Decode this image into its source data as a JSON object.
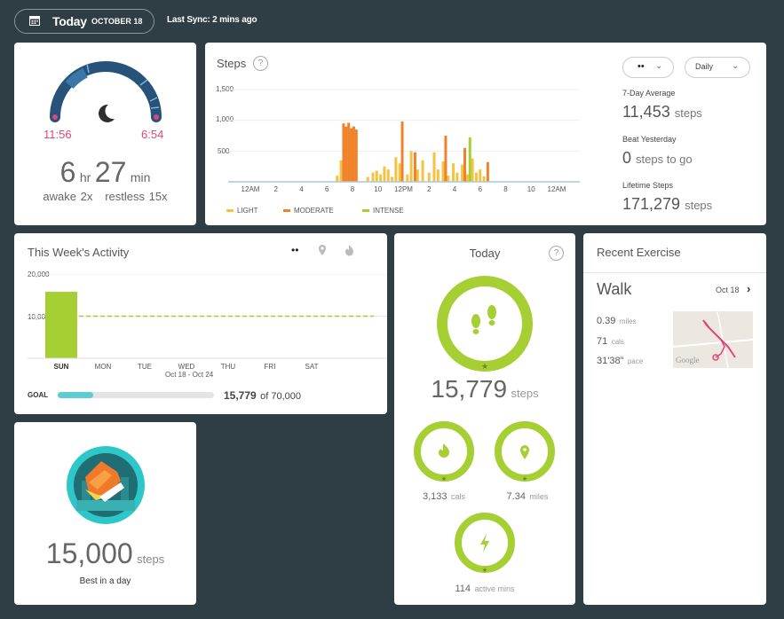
{
  "header": {
    "today_label": "Today",
    "date": "OCTOBER 18",
    "sync": "Last Sync: 2 mins ago"
  },
  "sleep": {
    "start": "11:56",
    "end": "6:54",
    "hours": "6",
    "hours_unit": "hr",
    "minutes": "27",
    "minutes_unit": "min",
    "awake": "awake 2x",
    "restless": "restless 15x"
  },
  "steps_card": {
    "title": "Steps",
    "help": "?",
    "view": "Daily",
    "seven_day_label": "7-Day Average",
    "seven_day_value": "11,453",
    "seven_day_unit": "steps",
    "beat_label": "Beat Yesterday",
    "beat_value": "0",
    "beat_unit": "steps to go",
    "lifetime_label": "Lifetime Steps",
    "lifetime_value": "171,279",
    "lifetime_unit": "steps",
    "legend": [
      "LIGHT",
      "MODERATE",
      "INTENSE"
    ],
    "colors": {
      "light": "#f5c242",
      "moderate": "#f0832a",
      "intense": "#a5cf33"
    }
  },
  "chart_data": [
    {
      "type": "bar",
      "title": "Steps",
      "y_ticks": [
        "1,500",
        "1,000",
        "500"
      ],
      "ylim": [
        0,
        1500
      ],
      "x_ticks": [
        "12AM",
        "2",
        "4",
        "6",
        "8",
        "10",
        "12PM",
        "2",
        "4",
        "6",
        "8",
        "10",
        "12AM"
      ],
      "x_range_hours": [
        0,
        24
      ],
      "series": [
        {
          "name": "LIGHT",
          "x": [
            6.8,
            7.1,
            9.2,
            9.6,
            9.9,
            10.2,
            10.5,
            10.8,
            11.1,
            11.4,
            11.7,
            12.3,
            12.6,
            13.1,
            13.5,
            14.0,
            14.4,
            14.7,
            15.1,
            15.5,
            15.9,
            16.2,
            16.6,
            17.0,
            17.4,
            17.7,
            18.0,
            18.3
          ],
          "values": [
            100,
            350,
            80,
            150,
            180,
            120,
            250,
            200,
            80,
            400,
            300,
            120,
            500,
            200,
            350,
            150,
            480,
            200,
            330,
            100,
            300,
            150,
            280,
            120,
            380,
            150,
            200,
            90
          ]
        },
        {
          "name": "MODERATE",
          "x": [
            7.3,
            7.5,
            7.7,
            7.9,
            8.1,
            8.3,
            11.9,
            12.9,
            15.3,
            16.8,
            18.6
          ],
          "values": [
            950,
            900,
            960,
            870,
            900,
            850,
            980,
            480,
            750,
            550,
            320
          ]
        },
        {
          "name": "INTENSE",
          "x": [
            17.2
          ],
          "values": [
            720
          ]
        }
      ]
    },
    {
      "type": "bar",
      "title": "This Week's Activity",
      "y_ticks": [
        "20,000",
        "10,000"
      ],
      "ylim": [
        0,
        20000
      ],
      "categories": [
        "SUN",
        "MON",
        "TUE",
        "WED",
        "THU",
        "FRI",
        "SAT"
      ],
      "values": [
        15779,
        0,
        0,
        0,
        0,
        0,
        0
      ],
      "goal_line": 10000
    }
  ],
  "week": {
    "title": "This Week's Activity",
    "range": "Oct 18 - Oct 24",
    "goal_label": "GOAL",
    "goal_progress": 0.225,
    "total": "15,779",
    "of_text": "of 70,000"
  },
  "today": {
    "title": "Today",
    "help": "?",
    "steps": "15,779",
    "steps_unit": "steps",
    "cals": "3,133",
    "cals_unit": "cals",
    "miles": "7.34",
    "miles_unit": "miles",
    "active": "114",
    "active_unit": "active mins"
  },
  "recent": {
    "title": "Recent Exercise",
    "activity": "Walk",
    "date": "Oct 18",
    "distance": "0.39",
    "distance_unit": "miles",
    "cals": "71",
    "cals_unit": "cals",
    "pace": "31'38\"",
    "pace_unit": "pace",
    "map_label": "Google"
  },
  "badge": {
    "value": "15,000",
    "unit": "steps",
    "caption": "Best in a day"
  }
}
